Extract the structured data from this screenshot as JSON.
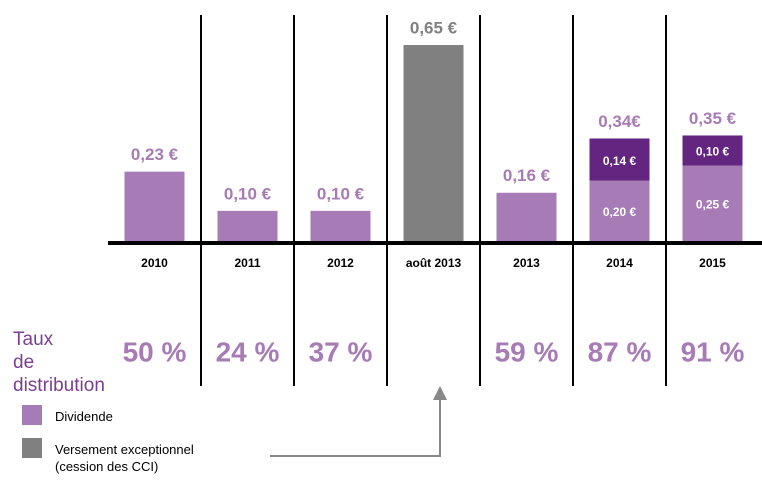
{
  "chart_data": {
    "type": "stacked_bar",
    "categories": [
      "2010",
      "2011",
      "2012",
      "août 2013",
      "2013",
      "2014",
      "2015"
    ],
    "series": [
      {
        "name": "Dividende",
        "color": "#a77bb5",
        "values": [
          0.23,
          0.1,
          0.1,
          null,
          0.16,
          0.2,
          0.25
        ],
        "value_labels": [
          null,
          null,
          null,
          null,
          null,
          "0,20 €",
          "0,25 €"
        ]
      },
      {
        "name": "Versement exceptionnel (cession des CCI)",
        "color": "#808080",
        "values": [
          null,
          null,
          null,
          0.65,
          null,
          null,
          null
        ]
      },
      {
        "color": "#63257f",
        "values": [
          null,
          null,
          null,
          null,
          null,
          0.14,
          0.1
        ],
        "value_labels": [
          null,
          null,
          null,
          null,
          null,
          "0,14 €",
          "0,10 €"
        ]
      }
    ],
    "totals": [
      0.23,
      0.1,
      0.1,
      0.65,
      0.16,
      0.34,
      0.35
    ],
    "total_labels": [
      "0,23 €",
      "0,10 €",
      "0,10 €",
      "0,65 €",
      "0,16 €",
      "0,34€",
      "0,35 €"
    ],
    "rate_title": "Taux de distribution",
    "distribution_rates": [
      50,
      24,
      37,
      null,
      59,
      87,
      91
    ],
    "distribution_rate_labels": [
      "50 %",
      "24 %",
      "37 %",
      null,
      "59 %",
      "87 %",
      "91 %"
    ]
  }
}
